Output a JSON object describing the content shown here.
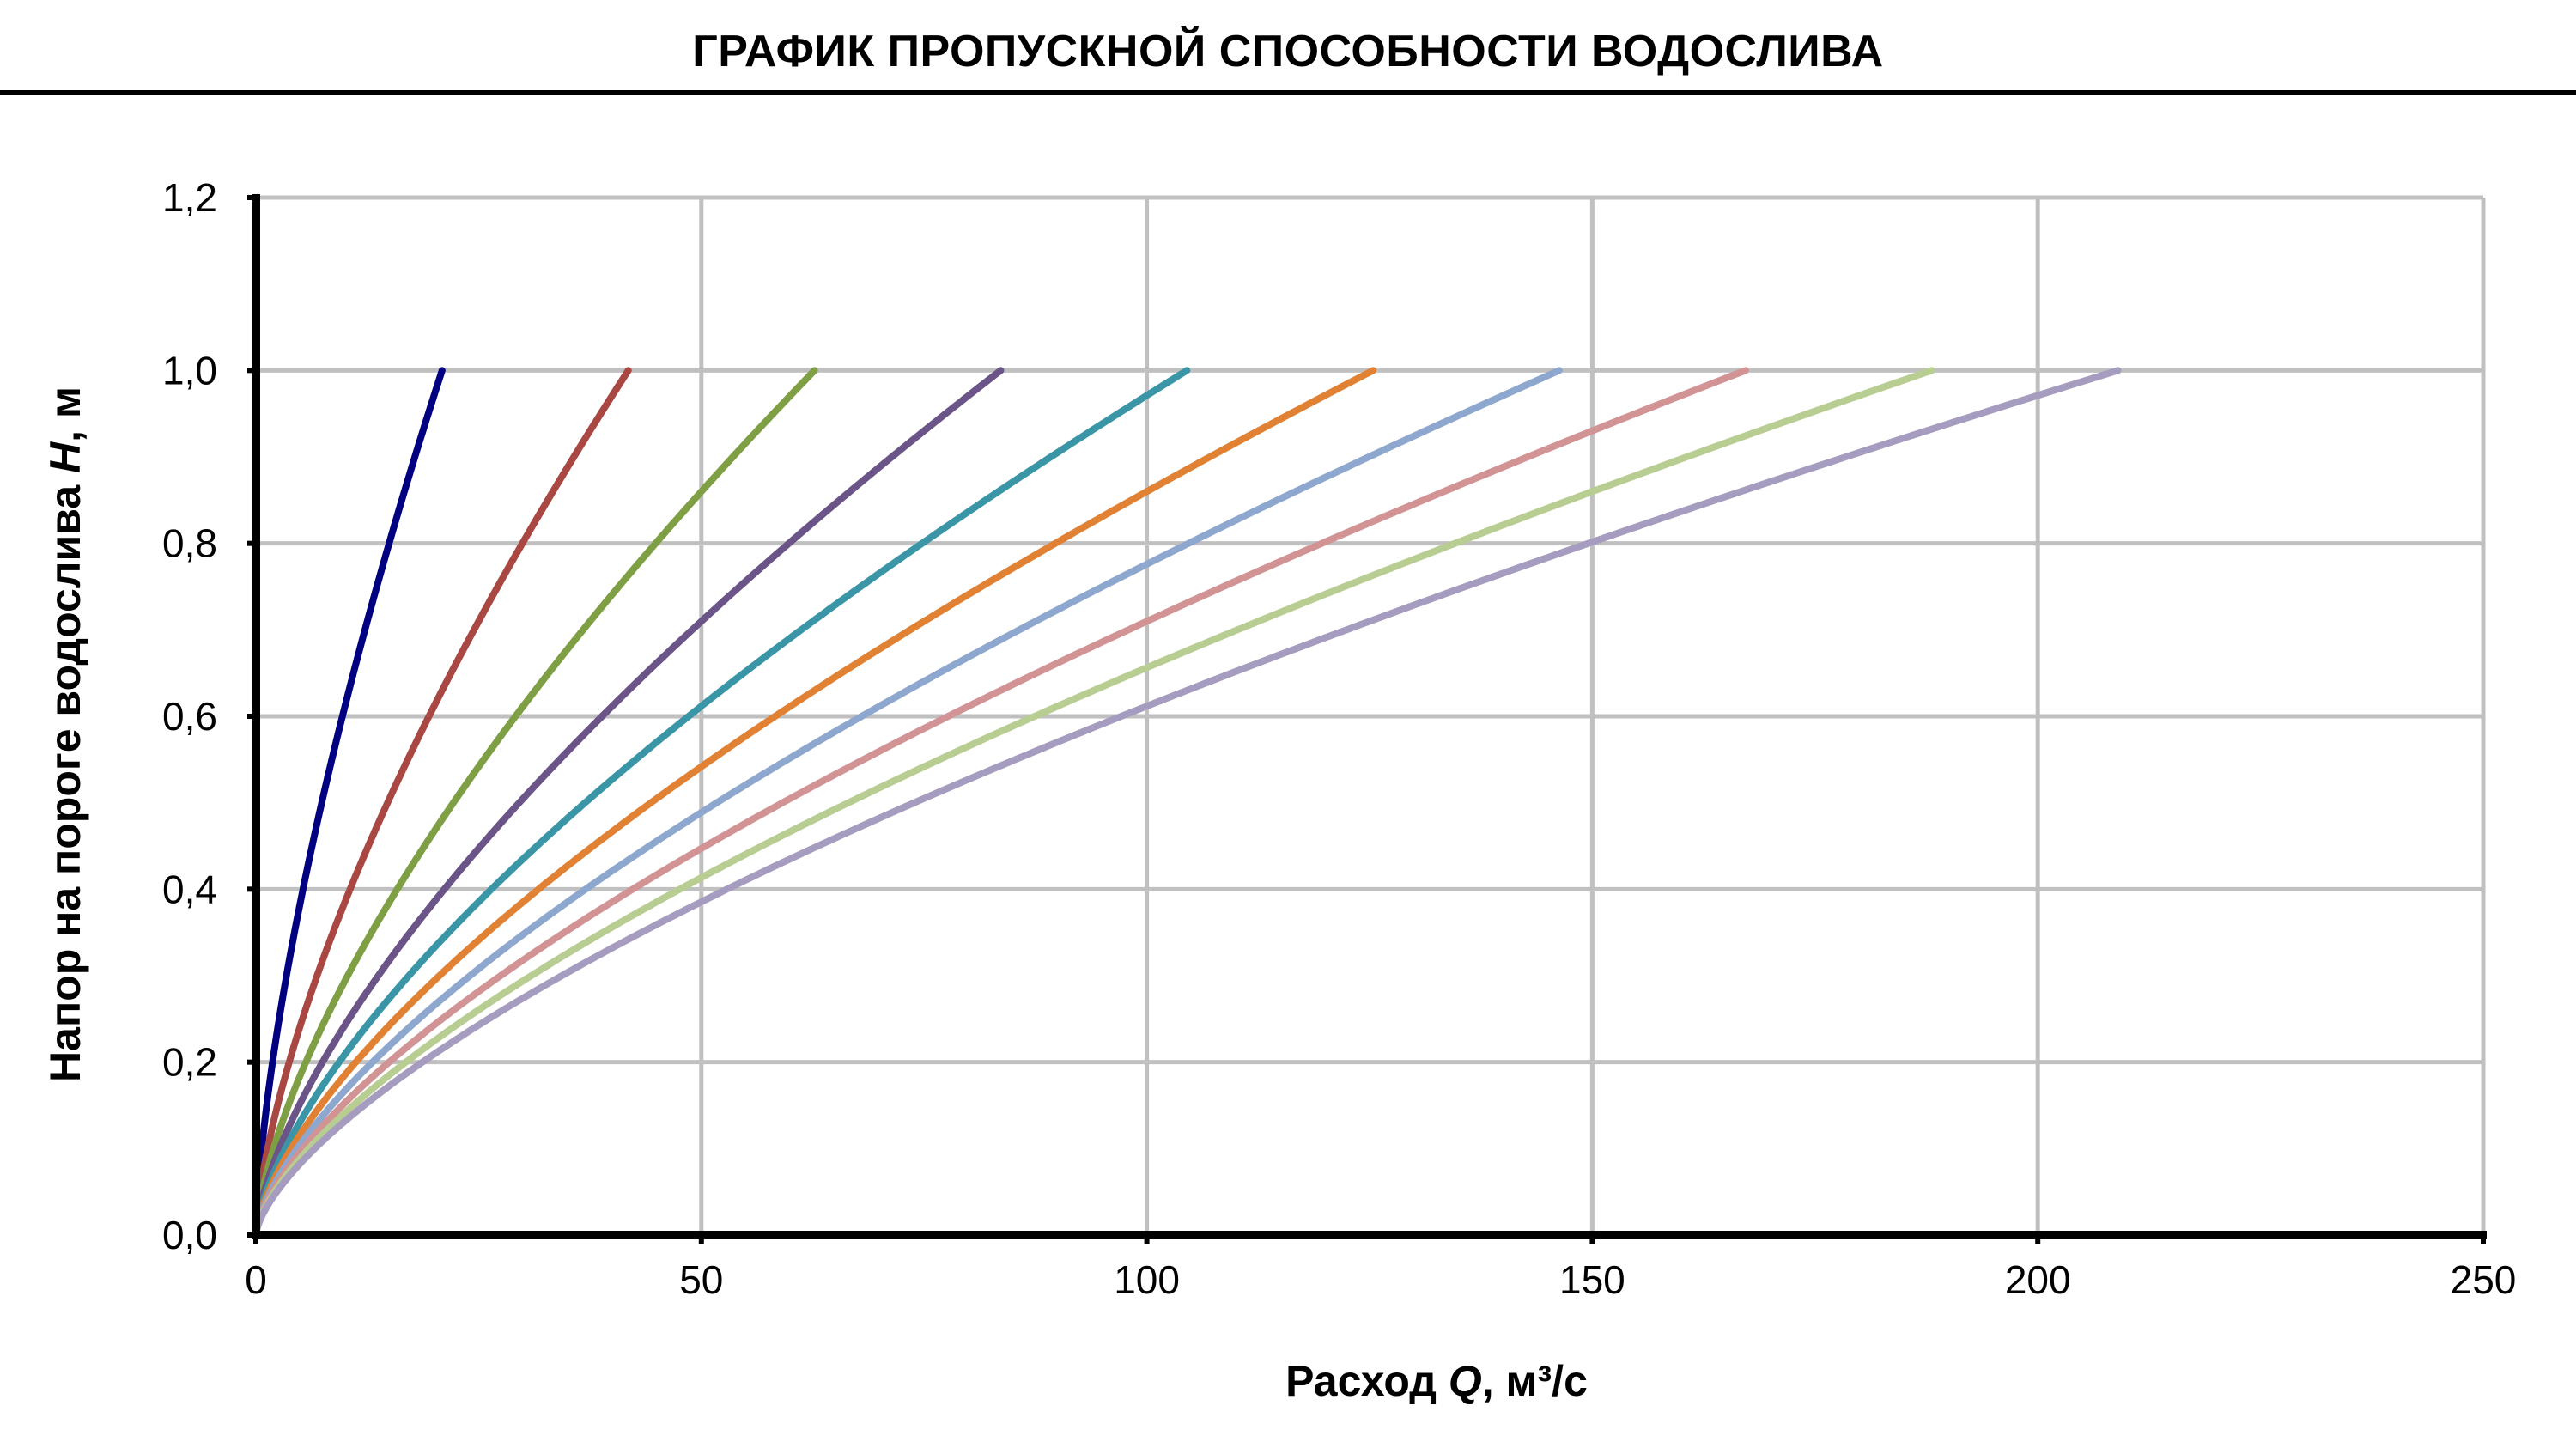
{
  "title": "ГРАФИК ПРОПУСКНОЙ СПОСОБНОСТИ ВОДОСЛИВА",
  "chart_data": {
    "type": "line",
    "title": "ГРАФИК ПРОПУСКНОЙ СПОСОБНОСТИ ВОДОСЛИВА",
    "xlabel": "Расход Q, м³/с",
    "xlabel_parts": {
      "prefix": "Расход ",
      "var": "Q",
      "suffix": ", м³/с"
    },
    "ylabel": "Напор на пороге водослива H, м",
    "ylabel_parts": {
      "prefix": "Напор на пороге водослива ",
      "var": "H",
      "suffix": ", м"
    },
    "xlim": [
      0,
      250
    ],
    "ylim": [
      0,
      1.2
    ],
    "x_ticks": [
      0,
      50,
      100,
      150,
      200,
      250
    ],
    "x_tick_labels": [
      "0",
      "50",
      "100",
      "150",
      "200",
      "250"
    ],
    "y_ticks": [
      0,
      0.2,
      0.4,
      0.6,
      0.8,
      1.0,
      1.2
    ],
    "y_tick_labels": [
      "0,0",
      "0,2",
      "0,4",
      "0,6",
      "0,8",
      "1,0",
      "1,2"
    ],
    "grid": true,
    "legend": "none",
    "curve_shape": "H = Hmax * (Q / Qmax)^(2/3)",
    "h_values": [
      0,
      0.1,
      0.2,
      0.3,
      0.4,
      0.5,
      0.6,
      0.7,
      0.8,
      0.9,
      1.0
    ],
    "series": [
      {
        "color": "#000080",
        "x": [
          0,
          0.66,
          1.87,
          3.43,
          5.29,
          7.39,
          9.71,
          12.24,
          14.95,
          17.83,
          20.9
        ]
      },
      {
        "color": "#A94743",
        "x": [
          0,
          1.32,
          3.74,
          6.87,
          10.57,
          14.78,
          19.42,
          24.48,
          29.91,
          35.67,
          41.8
        ]
      },
      {
        "color": "#7F9F44",
        "x": [
          0,
          1.98,
          5.61,
          10.3,
          15.86,
          22.17,
          29.13,
          36.71,
          44.86,
          53.5,
          62.7
        ]
      },
      {
        "color": "#6A5488",
        "x": [
          0,
          2.64,
          7.48,
          13.73,
          21.14,
          29.56,
          38.84,
          48.95,
          59.81,
          71.37,
          83.6
        ]
      },
      {
        "color": "#3A96A6",
        "x": [
          0,
          3.3,
          9.35,
          17.17,
          26.43,
          36.95,
          48.55,
          61.19,
          74.76,
          89.21,
          104.5
        ]
      },
      {
        "color": "#E08133",
        "x": [
          0,
          3.96,
          11.21,
          20.6,
          31.72,
          44.34,
          58.27,
          73.43,
          89.72,
          107.05,
          125.4
        ]
      },
      {
        "color": "#8EA7CE",
        "x": [
          0,
          4.62,
          13.08,
          24.04,
          37.0,
          51.73,
          67.98,
          85.66,
          104.67,
          124.89,
          146.3
        ]
      },
      {
        "color": "#D29394",
        "x": [
          0,
          5.29,
          14.95,
          27.47,
          42.29,
          59.12,
          77.69,
          97.9,
          119.62,
          142.74,
          167.2
        ]
      },
      {
        "color": "#B8CD91",
        "x": [
          0,
          5.95,
          16.82,
          30.9,
          47.58,
          66.51,
          87.4,
          110.14,
          134.58,
          160.58,
          188.1
        ]
      },
      {
        "color": "#A69CBF",
        "x": [
          0,
          6.61,
          18.69,
          34.34,
          52.86,
          73.9,
          97.11,
          122.38,
          149.53,
          178.42,
          209.0
        ]
      }
    ]
  }
}
